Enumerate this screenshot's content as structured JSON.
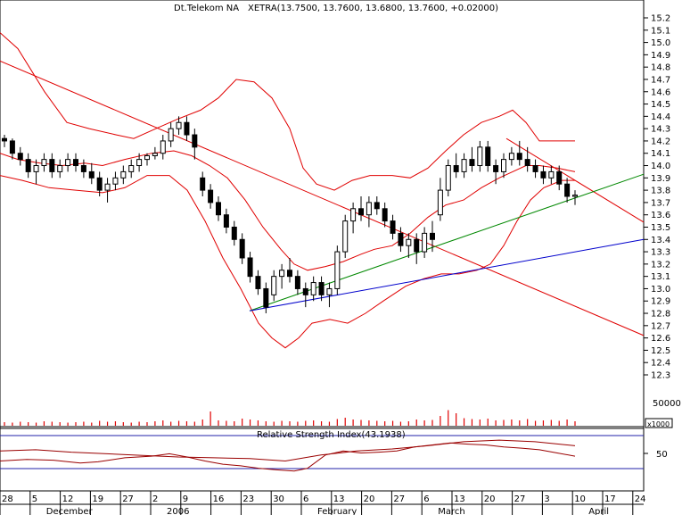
{
  "header": {
    "instrument": "Dt.Telekom NA",
    "quote": "XETRA(13.7500, 13.7600, 13.6800, 13.7600, +0.02000)"
  },
  "colors": {
    "bollinger": "#e00000",
    "trend_red": "#e00000",
    "trend_green": "#008800",
    "trend_blue": "#0000cc",
    "volume": "#e00000",
    "rsi_line": "#9a0000",
    "rsi_band": "#2222aa"
  },
  "labels": {
    "volume_scale": "50000",
    "volume_multiplier": "x1000",
    "rsi_title": "Relative Strength Index(43.1938)",
    "rsi_tick": "50"
  },
  "chart_data": {
    "type": "candlestick",
    "y_ticks": [
      "15.2",
      "15.1",
      "15.0",
      "14.9",
      "14.8",
      "14.7",
      "14.6",
      "14.5",
      "14.4",
      "14.3",
      "14.2",
      "14.1",
      "14.0",
      "13.9",
      "13.8",
      "13.7",
      "13.6",
      "13.5",
      "13.4",
      "13.3",
      "13.2",
      "13.1",
      "13.0",
      "12.9",
      "12.8",
      "12.7",
      "12.6",
      "12.5",
      "12.4",
      "12.3"
    ],
    "ylim": [
      12.25,
      15.25
    ],
    "x_day_labels": [
      "28",
      "5",
      "12",
      "19",
      "27",
      "2",
      "9",
      "16",
      "23",
      "30",
      "6",
      "13",
      "20",
      "27",
      "6",
      "13",
      "20",
      "27",
      "3",
      "10",
      "17",
      "24"
    ],
    "x_month_labels": [
      {
        "label": "December",
        "at": 1
      },
      {
        "label": "2006",
        "at": 5
      },
      {
        "label": "February",
        "at": 10
      },
      {
        "label": "March",
        "at": 14
      },
      {
        "label": "April",
        "at": 19
      }
    ],
    "candles": [
      [
        14.22,
        14.25,
        14.15,
        14.2
      ],
      [
        14.2,
        14.22,
        14.05,
        14.1
      ],
      [
        14.1,
        14.15,
        14.0,
        14.05
      ],
      [
        14.05,
        14.1,
        13.9,
        13.95
      ],
      [
        13.95,
        14.05,
        13.85,
        14.0
      ],
      [
        14.0,
        14.1,
        13.95,
        14.05
      ],
      [
        14.05,
        14.1,
        13.9,
        13.95
      ],
      [
        13.95,
        14.05,
        13.9,
        14.0
      ],
      [
        14.0,
        14.1,
        13.95,
        14.05
      ],
      [
        14.05,
        14.1,
        13.95,
        14.0
      ],
      [
        14.0,
        14.05,
        13.9,
        13.95
      ],
      [
        13.95,
        14.02,
        13.85,
        13.9
      ],
      [
        13.9,
        13.95,
        13.75,
        13.8
      ],
      [
        13.8,
        13.9,
        13.7,
        13.85
      ],
      [
        13.85,
        13.95,
        13.8,
        13.9
      ],
      [
        13.9,
        14.0,
        13.85,
        13.95
      ],
      [
        13.95,
        14.05,
        13.9,
        14.0
      ],
      [
        14.0,
        14.1,
        13.95,
        14.05
      ],
      [
        14.05,
        14.1,
        14.0,
        14.08
      ],
      [
        14.08,
        14.15,
        14.05,
        14.1
      ],
      [
        14.1,
        14.25,
        14.05,
        14.2
      ],
      [
        14.2,
        14.35,
        14.15,
        14.3
      ],
      [
        14.3,
        14.4,
        14.25,
        14.35
      ],
      [
        14.35,
        14.4,
        14.2,
        14.25
      ],
      [
        14.25,
        14.3,
        14.05,
        14.15
      ],
      [
        13.9,
        13.95,
        13.75,
        13.8
      ],
      [
        13.8,
        13.85,
        13.65,
        13.7
      ],
      [
        13.7,
        13.75,
        13.55,
        13.6
      ],
      [
        13.6,
        13.65,
        13.45,
        13.5
      ],
      [
        13.5,
        13.55,
        13.35,
        13.4
      ],
      [
        13.4,
        13.45,
        13.2,
        13.25
      ],
      [
        13.25,
        13.3,
        13.05,
        13.1
      ],
      [
        13.1,
        13.15,
        12.95,
        13.0
      ],
      [
        13.0,
        13.05,
        12.8,
        12.85
      ],
      [
        12.95,
        13.15,
        12.9,
        13.1
      ],
      [
        13.1,
        13.2,
        13.0,
        13.15
      ],
      [
        13.15,
        13.25,
        13.05,
        13.1
      ],
      [
        13.1,
        13.15,
        12.95,
        13.0
      ],
      [
        13.0,
        13.05,
        12.85,
        12.95
      ],
      [
        12.95,
        13.1,
        12.9,
        13.05
      ],
      [
        13.05,
        13.1,
        12.9,
        12.95
      ],
      [
        12.95,
        13.05,
        12.85,
        13.0
      ],
      [
        13.0,
        13.35,
        12.95,
        13.3
      ],
      [
        13.3,
        13.6,
        13.25,
        13.55
      ],
      [
        13.55,
        13.7,
        13.45,
        13.65
      ],
      [
        13.65,
        13.75,
        13.55,
        13.6
      ],
      [
        13.6,
        13.75,
        13.5,
        13.7
      ],
      [
        13.7,
        13.75,
        13.6,
        13.65
      ],
      [
        13.65,
        13.7,
        13.5,
        13.55
      ],
      [
        13.55,
        13.6,
        13.4,
        13.45
      ],
      [
        13.45,
        13.5,
        13.3,
        13.35
      ],
      [
        13.35,
        13.45,
        13.25,
        13.4
      ],
      [
        13.4,
        13.45,
        13.2,
        13.3
      ],
      [
        13.3,
        13.5,
        13.25,
        13.45
      ],
      [
        13.45,
        13.55,
        13.3,
        13.4
      ],
      [
        13.6,
        13.9,
        13.55,
        13.8
      ],
      [
        13.8,
        14.05,
        13.75,
        14.0
      ],
      [
        14.0,
        14.1,
        13.9,
        13.95
      ],
      [
        13.95,
        14.1,
        13.9,
        14.05
      ],
      [
        14.05,
        14.15,
        13.95,
        14.0
      ],
      [
        14.0,
        14.2,
        13.95,
        14.15
      ],
      [
        14.15,
        14.2,
        13.95,
        14.0
      ],
      [
        14.0,
        14.05,
        13.85,
        13.95
      ],
      [
        13.95,
        14.1,
        13.9,
        14.05
      ],
      [
        14.05,
        14.15,
        14.0,
        14.1
      ],
      [
        14.1,
        14.2,
        14.0,
        14.05
      ],
      [
        14.05,
        14.15,
        13.95,
        14.0
      ],
      [
        14.0,
        14.05,
        13.9,
        13.95
      ],
      [
        13.95,
        14.0,
        13.85,
        13.9
      ],
      [
        13.9,
        14.0,
        13.85,
        13.95
      ],
      [
        13.95,
        14.0,
        13.8,
        13.85
      ],
      [
        13.85,
        13.9,
        13.7,
        13.75
      ],
      [
        13.75,
        13.8,
        13.68,
        13.76
      ]
    ],
    "volume": [
      8,
      7,
      9,
      8,
      7,
      10,
      9,
      8,
      7,
      8,
      9,
      7,
      11,
      9,
      10,
      8,
      7,
      9,
      8,
      10,
      12,
      9,
      11,
      10,
      9,
      14,
      32,
      12,
      11,
      10,
      16,
      14,
      12,
      10,
      9,
      11,
      10,
      9,
      11,
      12,
      10,
      9,
      15,
      18,
      14,
      13,
      12,
      11,
      10,
      11,
      9,
      10,
      14,
      12,
      13,
      22,
      35,
      28,
      17,
      15,
      14,
      16,
      12,
      13,
      14,
      12,
      15,
      11,
      12,
      13,
      11,
      14,
      10
    ],
    "bollinger_upper": [
      [
        0,
        15.08
      ],
      [
        20,
        14.95
      ],
      [
        50,
        14.6
      ],
      [
        75,
        14.35
      ],
      [
        100,
        14.3
      ],
      [
        130,
        14.25
      ],
      [
        150,
        14.22
      ],
      [
        175,
        14.3
      ],
      [
        200,
        14.38
      ],
      [
        225,
        14.45
      ],
      [
        245,
        14.55
      ],
      [
        265,
        14.7
      ],
      [
        285,
        14.68
      ],
      [
        305,
        14.55
      ],
      [
        325,
        14.3
      ],
      [
        340,
        13.98
      ],
      [
        355,
        13.85
      ],
      [
        375,
        13.8
      ],
      [
        395,
        13.88
      ],
      [
        415,
        13.92
      ],
      [
        440,
        13.92
      ],
      [
        460,
        13.9
      ],
      [
        480,
        13.98
      ],
      [
        500,
        14.12
      ],
      [
        520,
        14.25
      ],
      [
        540,
        14.35
      ],
      [
        560,
        14.4
      ],
      [
        575,
        14.45
      ],
      [
        590,
        14.35
      ],
      [
        605,
        14.2
      ],
      [
        625,
        14.2
      ],
      [
        645,
        14.2
      ]
    ],
    "bollinger_middle": [
      [
        0,
        14.1
      ],
      [
        20,
        14.05
      ],
      [
        45,
        14.02
      ],
      [
        70,
        14.0
      ],
      [
        95,
        14.02
      ],
      [
        115,
        14.0
      ],
      [
        140,
        14.05
      ],
      [
        170,
        14.1
      ],
      [
        195,
        14.12
      ],
      [
        215,
        14.08
      ],
      [
        235,
        14.0
      ],
      [
        255,
        13.9
      ],
      [
        275,
        13.72
      ],
      [
        295,
        13.5
      ],
      [
        315,
        13.32
      ],
      [
        330,
        13.2
      ],
      [
        345,
        13.15
      ],
      [
        365,
        13.18
      ],
      [
        385,
        13.22
      ],
      [
        405,
        13.28
      ],
      [
        420,
        13.32
      ],
      [
        440,
        13.35
      ],
      [
        460,
        13.45
      ],
      [
        480,
        13.58
      ],
      [
        500,
        13.68
      ],
      [
        520,
        13.72
      ],
      [
        540,
        13.82
      ],
      [
        560,
        13.9
      ],
      [
        575,
        13.95
      ],
      [
        590,
        14.0
      ],
      [
        605,
        14.0
      ],
      [
        625,
        13.98
      ],
      [
        645,
        13.95
      ]
    ],
    "bollinger_lower": [
      [
        0,
        13.92
      ],
      [
        25,
        13.88
      ],
      [
        55,
        13.82
      ],
      [
        85,
        13.8
      ],
      [
        115,
        13.78
      ],
      [
        140,
        13.82
      ],
      [
        165,
        13.92
      ],
      [
        190,
        13.92
      ],
      [
        210,
        13.8
      ],
      [
        230,
        13.55
      ],
      [
        250,
        13.25
      ],
      [
        270,
        13.0
      ],
      [
        290,
        12.72
      ],
      [
        305,
        12.6
      ],
      [
        320,
        12.52
      ],
      [
        335,
        12.6
      ],
      [
        350,
        12.72
      ],
      [
        370,
        12.75
      ],
      [
        390,
        12.72
      ],
      [
        410,
        12.8
      ],
      [
        430,
        12.9
      ],
      [
        455,
        13.02
      ],
      [
        475,
        13.08
      ],
      [
        495,
        13.12
      ],
      [
        515,
        13.12
      ],
      [
        535,
        13.15
      ],
      [
        550,
        13.2
      ],
      [
        565,
        13.35
      ],
      [
        580,
        13.55
      ],
      [
        595,
        13.72
      ],
      [
        610,
        13.82
      ],
      [
        630,
        13.88
      ],
      [
        645,
        13.88
      ]
    ],
    "trendlines": [
      {
        "color": "red",
        "from": [
          0,
          14.85
        ],
        "to": [
          722,
          12.62
        ]
      },
      {
        "color": "red",
        "from": [
          568,
          14.22
        ],
        "to": [
          722,
          13.54
        ]
      },
      {
        "color": "green",
        "from": [
          280,
          12.82
        ],
        "to": [
          722,
          13.93
        ]
      },
      {
        "color": "blue",
        "from": [
          280,
          12.82
        ],
        "to": [
          722,
          13.4
        ]
      }
    ],
    "rsi": [
      [
        0,
        0.7
      ],
      [
        30,
        0.66
      ],
      [
        60,
        0.68
      ],
      [
        90,
        0.75
      ],
      [
        110,
        0.72
      ],
      [
        140,
        0.62
      ],
      [
        170,
        0.58
      ],
      [
        190,
        0.52
      ],
      [
        210,
        0.6
      ],
      [
        230,
        0.7
      ],
      [
        250,
        0.78
      ],
      [
        270,
        0.82
      ],
      [
        290,
        0.88
      ],
      [
        310,
        0.92
      ],
      [
        330,
        0.95
      ],
      [
        345,
        0.88
      ],
      [
        365,
        0.55
      ],
      [
        385,
        0.45
      ],
      [
        405,
        0.5
      ],
      [
        425,
        0.48
      ],
      [
        445,
        0.45
      ],
      [
        465,
        0.35
      ],
      [
        485,
        0.3
      ],
      [
        505,
        0.25
      ],
      [
        525,
        0.28
      ],
      [
        545,
        0.3
      ],
      [
        565,
        0.35
      ],
      [
        585,
        0.38
      ],
      [
        605,
        0.42
      ],
      [
        625,
        0.5
      ],
      [
        645,
        0.58
      ]
    ],
    "rsi_secondary": [
      [
        0,
        0.45
      ],
      [
        40,
        0.42
      ],
      [
        80,
        0.48
      ],
      [
        120,
        0.52
      ],
      [
        160,
        0.56
      ],
      [
        200,
        0.6
      ],
      [
        240,
        0.62
      ],
      [
        280,
        0.64
      ],
      [
        320,
        0.7
      ],
      [
        360,
        0.55
      ],
      [
        400,
        0.45
      ],
      [
        440,
        0.4
      ],
      [
        480,
        0.32
      ],
      [
        520,
        0.22
      ],
      [
        560,
        0.18
      ],
      [
        600,
        0.22
      ],
      [
        645,
        0.32
      ]
    ]
  }
}
